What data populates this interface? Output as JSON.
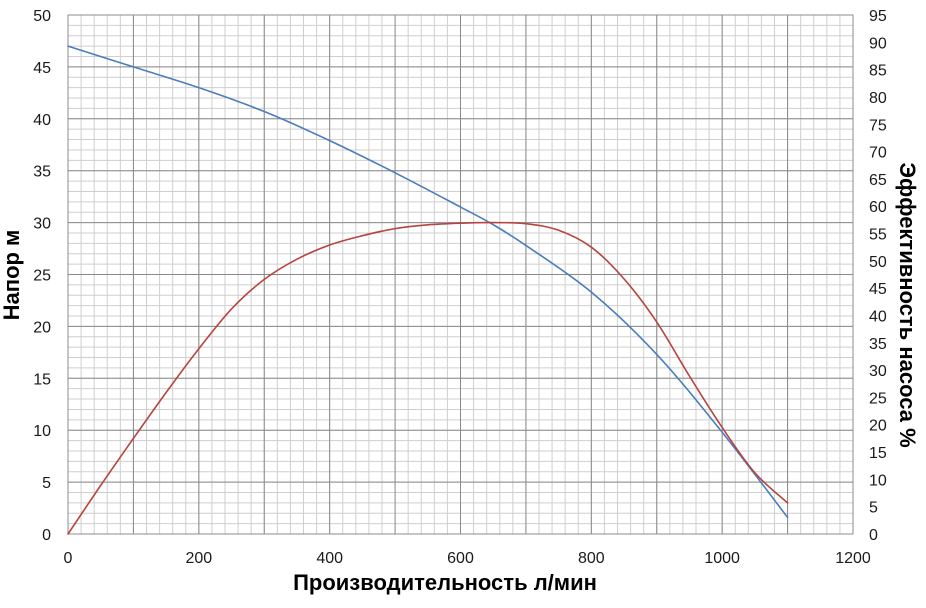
{
  "chart_data": {
    "type": "line",
    "title": "",
    "xlabel": "Производительность л/мин",
    "ylabel": "Напор м",
    "y2label": "Эффективность насоса %",
    "xlim": [
      0,
      1200
    ],
    "ylim": [
      0,
      50
    ],
    "y2lim": [
      0,
      95
    ],
    "x_ticks": [
      0,
      200,
      400,
      600,
      800,
      1000,
      1200
    ],
    "y_ticks": [
      0,
      5,
      10,
      15,
      20,
      25,
      30,
      35,
      40,
      45,
      50
    ],
    "y2_ticks": [
      0,
      5,
      10,
      15,
      20,
      25,
      30,
      35,
      40,
      45,
      50,
      55,
      60,
      65,
      70,
      75,
      80,
      85,
      90,
      95
    ],
    "grid": true,
    "legend": "none",
    "series": [
      {
        "axis": "left",
        "color": "#4a7eba",
        "x": [
          0,
          100,
          200,
          300,
          400,
          500,
          600,
          650,
          700,
          800,
          900,
          1000,
          1100
        ],
        "y": [
          47,
          45,
          43,
          40.7,
          37.9,
          34.8,
          31.5,
          29.8,
          27.8,
          23.3,
          17.3,
          9.8,
          1.6
        ]
      },
      {
        "axis": "right",
        "color": "#b6443f",
        "x": [
          0,
          50,
          100,
          150,
          200,
          250,
          300,
          350,
          400,
          450,
          500,
          550,
          600,
          650,
          700,
          750,
          800,
          850,
          900,
          950,
          1000,
          1050,
          1100
        ],
        "y": [
          0,
          8.9,
          17.5,
          25.9,
          33.9,
          41.2,
          46.6,
          50.3,
          52.9,
          54.6,
          55.9,
          56.6,
          56.9,
          57,
          56.8,
          55.6,
          52.5,
          46.7,
          38.8,
          28.9,
          19.5,
          11.2,
          5.7
        ]
      }
    ]
  }
}
